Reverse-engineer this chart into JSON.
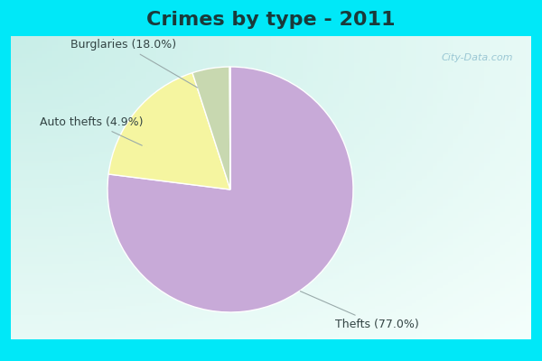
{
  "title": "Crimes by type - 2011",
  "slices": [
    {
      "label": "Thefts (77.0%)",
      "pct": 77.0,
      "color": "#c8aad8"
    },
    {
      "label": "Burglaries (18.0%)",
      "pct": 18.0,
      "color": "#f5f5a0"
    },
    {
      "label": "Auto thefts (4.9%)",
      "pct": 4.9,
      "color": "#c8d8b0"
    },
    {
      "label": "",
      "pct": 0.1,
      "color": "#c8aad8"
    }
  ],
  "bg_color_border": "#00e8f8",
  "bg_color_topleft": "#c8eee8",
  "bg_color_center": "#f0faf8",
  "title_fontsize": 16,
  "label_fontsize": 9,
  "watermark": "City-Data.com",
  "title_color": "#1a3a3a",
  "label_color": "#334444"
}
